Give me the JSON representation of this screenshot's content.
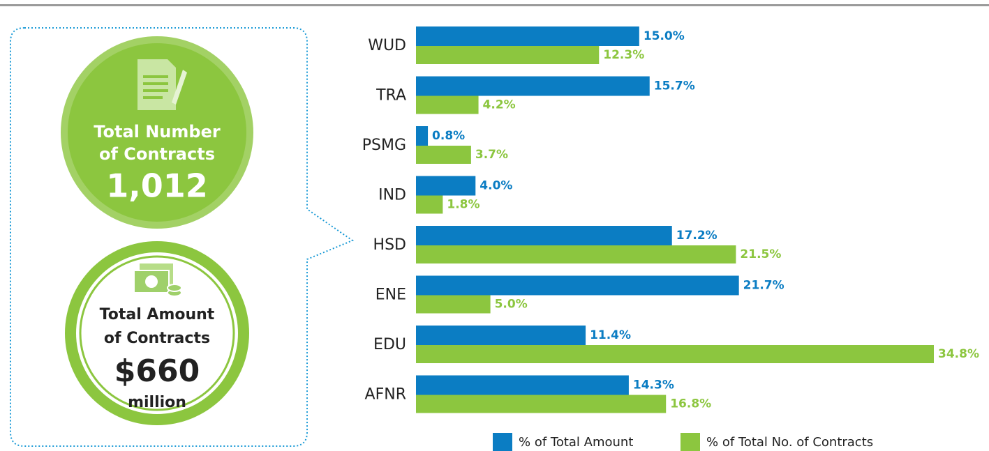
{
  "chart_data": {
    "type": "hbar",
    "categories": [
      "WUD",
      "TRA",
      "PSMG",
      "IND",
      "HSD",
      "ENE",
      "EDU",
      "AFNR"
    ],
    "series": [
      {
        "name": "% of Total Amount",
        "color": "#0b7dc3",
        "values": [
          15.0,
          15.7,
          0.8,
          4.0,
          17.2,
          21.7,
          11.4,
          14.3
        ],
        "value_labels": [
          "15.0%",
          "15.7%",
          "0.8%",
          "4.0%",
          "17.2%",
          "21.7%",
          "11.4%",
          "14.3%"
        ]
      },
      {
        "name": "% of Total No. of Contracts",
        "color": "#8cc63f",
        "values": [
          12.3,
          4.2,
          3.7,
          1.8,
          21.5,
          5.0,
          34.8,
          16.8
        ],
        "value_labels": [
          "12.3%",
          "4.2%",
          "3.7%",
          "1.8%",
          "21.5%",
          "5.0%",
          "34.8%",
          "16.8%"
        ]
      }
    ]
  },
  "summary": {
    "contracts": {
      "line1": "Total Number",
      "line2": "of Contracts",
      "value": "1,012"
    },
    "amount": {
      "line1": "Total Amount",
      "line2": "of Contracts",
      "value": "$660",
      "unit": "million"
    }
  }
}
